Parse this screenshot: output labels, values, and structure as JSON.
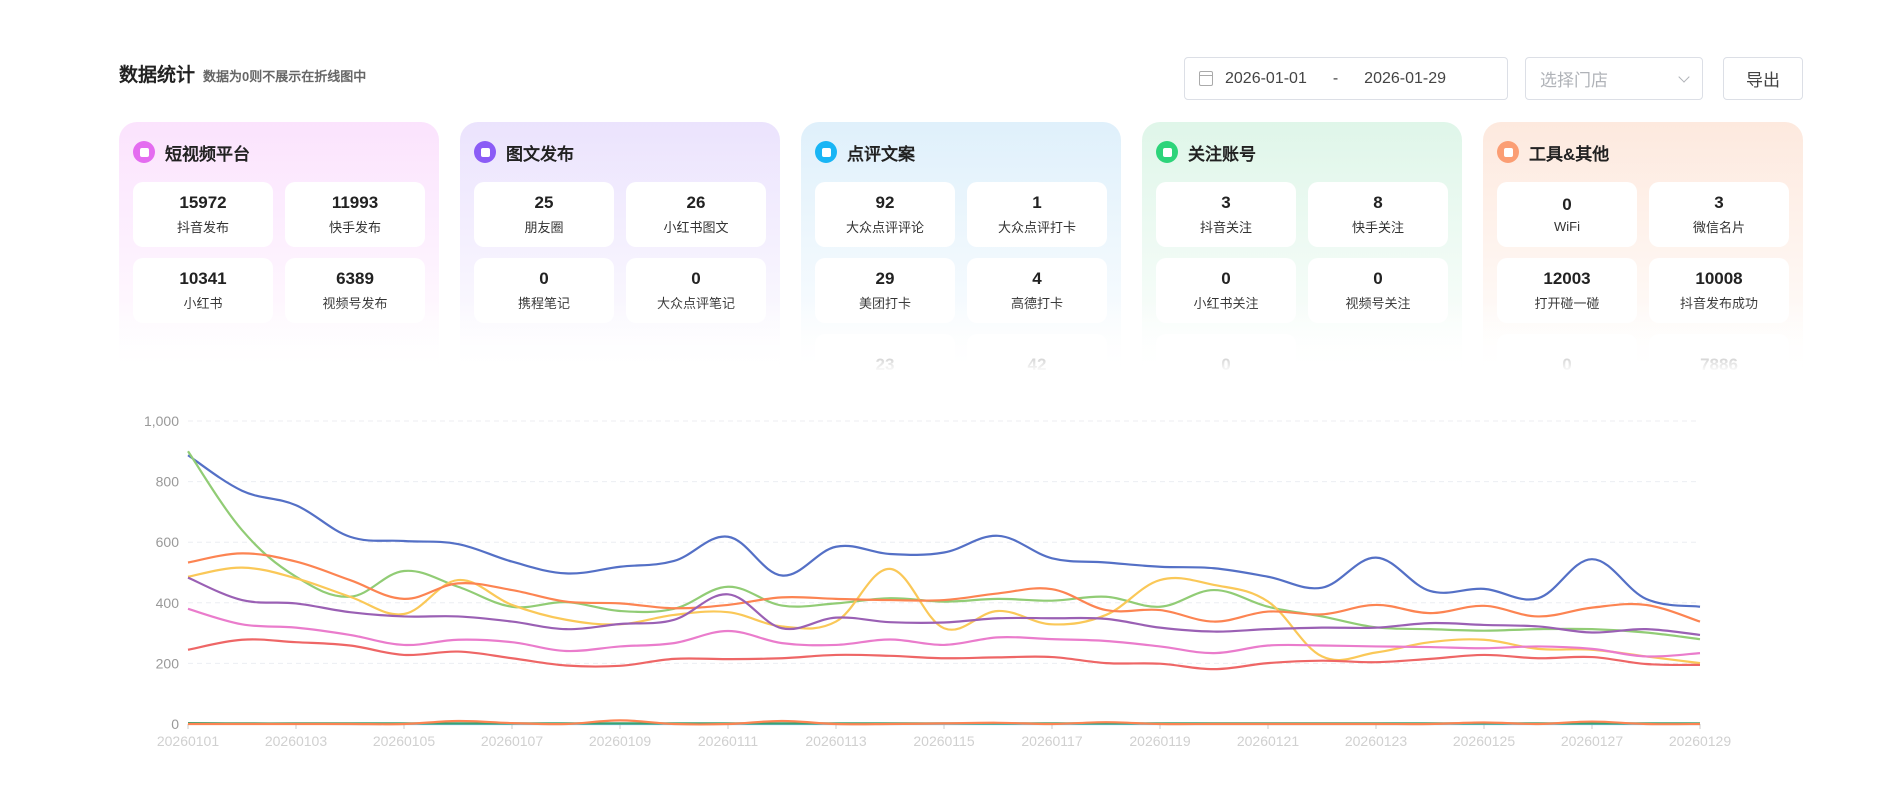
{
  "header": {
    "title": "数据统计",
    "subtitle": "数据为0则不展示在折线图中"
  },
  "filters": {
    "date_start": "2026-01-01",
    "date_sep": "-",
    "date_end": "2026-01-29",
    "store_placeholder": "选择门店",
    "export_label": "导出",
    "calendar_icon": "calendar-icon",
    "dropdown_icon": "chevron-down-icon"
  },
  "cards": [
    {
      "title": "短视频平台",
      "icon": "video-icon",
      "color": "#e46cf0",
      "bg": "#fbe3fd",
      "items": [
        {
          "value": "15972",
          "label": "抖音发布"
        },
        {
          "value": "11993",
          "label": "快手发布"
        },
        {
          "value": "10341",
          "label": "小红书"
        },
        {
          "value": "6389",
          "label": "视频号发布"
        }
      ]
    },
    {
      "title": "图文发布",
      "icon": "image-folder-icon",
      "color": "#8b5cf6",
      "bg": "#ebe3fd",
      "items": [
        {
          "value": "25",
          "label": "朋友圈"
        },
        {
          "value": "26",
          "label": "小红书图文"
        },
        {
          "value": "0",
          "label": "携程笔记"
        },
        {
          "value": "0",
          "label": "大众点评笔记"
        }
      ]
    },
    {
      "title": "点评文案",
      "icon": "comment-icon",
      "color": "#19b5f5",
      "bg": "#dff0fb",
      "items": [
        {
          "value": "92",
          "label": "大众点评评论"
        },
        {
          "value": "1",
          "label": "大众点评打卡"
        },
        {
          "value": "29",
          "label": "美团打卡"
        },
        {
          "value": "4",
          "label": "高德打卡"
        },
        {
          "value": "23",
          "label": ""
        },
        {
          "value": "42",
          "label": ""
        }
      ]
    },
    {
      "title": "关注账号",
      "icon": "heart-icon",
      "color": "#2dd47a",
      "bg": "#dff6e9",
      "items": [
        {
          "value": "3",
          "label": "抖音关注"
        },
        {
          "value": "8",
          "label": "快手关注"
        },
        {
          "value": "0",
          "label": "小红书关注"
        },
        {
          "value": "0",
          "label": "视频号关注"
        },
        {
          "value": "0",
          "label": ""
        }
      ]
    },
    {
      "title": "工具&其他",
      "icon": "box-icon",
      "color": "#fb9e74",
      "bg": "#fde9de",
      "items": [
        {
          "value": "0",
          "label": "WiFi"
        },
        {
          "value": "3",
          "label": "微信名片"
        },
        {
          "value": "12003",
          "label": "打开碰一碰"
        },
        {
          "value": "10008",
          "label": "抖音发布成功"
        },
        {
          "value": "0",
          "label": ""
        },
        {
          "value": "7886",
          "label": ""
        }
      ]
    }
  ],
  "chart_data": {
    "type": "line",
    "smooth": true,
    "grid": true,
    "ylim": [
      0,
      1000
    ],
    "yticks": [
      "0",
      "200",
      "400",
      "600",
      "800",
      "1,000"
    ],
    "x": [
      "20260101",
      "20260102",
      "20260103",
      "20260104",
      "20260105",
      "20260106",
      "20260107",
      "20260108",
      "20260109",
      "20260110",
      "20260111",
      "20260112",
      "20260113",
      "20260114",
      "20260115",
      "20260116",
      "20260117",
      "20260118",
      "20260119",
      "20260120",
      "20260121",
      "20260122",
      "20260123",
      "20260124",
      "20260125",
      "20260126",
      "20260127",
      "20260128",
      "20260129"
    ],
    "series": [
      {
        "color": "#5470c6",
        "values": [
          887,
          770,
          722,
          618,
          604,
          594,
          536,
          497,
          519,
          538,
          618,
          490,
          585,
          561,
          566,
          621,
          547,
          533,
          519,
          514,
          486,
          450,
          549,
          439,
          446,
          415,
          544,
          413,
          387
        ]
      },
      {
        "color": "#91cc75",
        "values": [
          900,
          640,
          486,
          420,
          505,
          453,
          387,
          402,
          373,
          380,
          453,
          391,
          398,
          415,
          404,
          413,
          407,
          420,
          387,
          442,
          387,
          355,
          319,
          313,
          308,
          313,
          313,
          302,
          280
        ]
      },
      {
        "color": "#fac858",
        "values": [
          486,
          516,
          481,
          420,
          363,
          475,
          393,
          344,
          329,
          360,
          369,
          322,
          338,
          512,
          316,
          373,
          329,
          360,
          475,
          459,
          404,
          223,
          236,
          270,
          278,
          248,
          245,
          223,
          201
        ]
      },
      {
        "color": "#ee6666",
        "values": [
          245,
          278,
          270,
          259,
          228,
          239,
          217,
          193,
          192,
          215,
          214,
          217,
          228,
          225,
          217,
          220,
          221,
          201,
          199,
          181,
          201,
          209,
          204,
          215,
          228,
          217,
          221,
          198,
          195
        ]
      },
      {
        "color": "#73c0de",
        "values": [
          2,
          1,
          1,
          0,
          0,
          0,
          0,
          0,
          0,
          0,
          0,
          0,
          0,
          0,
          0,
          0,
          0,
          0,
          0,
          0,
          0,
          0,
          0,
          0,
          0,
          0,
          0,
          0,
          0
        ]
      },
      {
        "color": "#3ba272",
        "values": [
          3,
          2,
          2,
          2,
          2,
          2,
          2,
          2,
          2,
          2,
          2,
          2,
          2,
          2,
          2,
          2,
          2,
          2,
          2,
          2,
          2,
          2,
          2,
          2,
          2,
          2,
          2,
          2,
          2
        ]
      },
      {
        "color": "#fc8452",
        "values": [
          533,
          563,
          536,
          475,
          413,
          464,
          442,
          404,
          398,
          382,
          393,
          418,
          413,
          409,
          409,
          431,
          445,
          376,
          376,
          338,
          371,
          362,
          393,
          366,
          390,
          355,
          384,
          393,
          338
        ]
      },
      {
        "color": "#9a60b4",
        "values": [
          483,
          409,
          398,
          369,
          355,
          355,
          338,
          313,
          330,
          344,
          428,
          316,
          351,
          336,
          335,
          349,
          349,
          347,
          318,
          305,
          313,
          318,
          318,
          333,
          327,
          322,
          302,
          313,
          294
        ]
      },
      {
        "color": "#ea7ccc",
        "values": [
          380,
          329,
          318,
          294,
          261,
          278,
          270,
          241,
          256,
          267,
          307,
          267,
          261,
          279,
          261,
          286,
          280,
          274,
          256,
          234,
          259,
          259,
          256,
          254,
          250,
          256,
          248,
          223,
          234
        ]
      },
      {
        "color": "#fc8452",
        "values": [
          0,
          0,
          0,
          0,
          0,
          10,
          3,
          0,
          12,
          0,
          0,
          10,
          0,
          0,
          2,
          4,
          0,
          6,
          0,
          0,
          0,
          0,
          0,
          0,
          5,
          0,
          8,
          0,
          0
        ]
      }
    ]
  }
}
